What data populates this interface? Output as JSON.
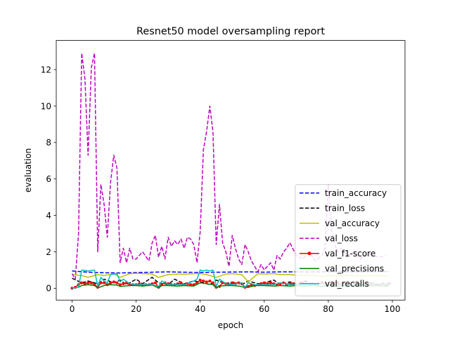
{
  "chart_data": {
    "type": "line",
    "title": "Resnet50 model oversampling report",
    "xlabel": "epoch",
    "ylabel": "evaluation",
    "xlim": [
      -4.95,
      103.95
    ],
    "ylim": [
      -0.65,
      13.6
    ],
    "xticks": [
      0,
      20,
      40,
      60,
      80,
      100
    ],
    "yticks": [
      0,
      2,
      4,
      6,
      8,
      10,
      12
    ],
    "grid": false,
    "legend_position": "lower-right",
    "series": [
      {
        "name": "train_accuracy",
        "color": "#0000ff",
        "dash": "dashed",
        "marker": false,
        "x": [
          0,
          5,
          10,
          15,
          20,
          25,
          30,
          35,
          40,
          45,
          50,
          55,
          60,
          65,
          70,
          75,
          80,
          85,
          90,
          95,
          99
        ],
        "y": [
          0.95,
          0.88,
          0.85,
          0.84,
          0.86,
          0.88,
          0.9,
          0.88,
          0.87,
          0.88,
          0.89,
          0.9,
          0.88,
          0.9,
          0.9,
          0.89,
          0.91,
          0.9,
          0.9,
          0.91,
          0.92
        ]
      },
      {
        "name": "train_loss",
        "color": "#000000",
        "dash": "dashed",
        "marker": false,
        "x": [
          0,
          3,
          5,
          8,
          10,
          13,
          15,
          17,
          20,
          22,
          25,
          27,
          30,
          32,
          35,
          38,
          40,
          43,
          45,
          48,
          50,
          53,
          55,
          58,
          60,
          63,
          65,
          68,
          70,
          73,
          75,
          78,
          80,
          83,
          85,
          88,
          90,
          93,
          95,
          99
        ],
        "y": [
          0.55,
          0.3,
          0.4,
          0.25,
          0.5,
          0.3,
          0.45,
          0.2,
          0.5,
          0.25,
          0.6,
          0.3,
          0.2,
          0.5,
          0.25,
          0.4,
          0.35,
          0.2,
          0.45,
          0.25,
          0.35,
          0.2,
          0.4,
          0.25,
          0.3,
          0.45,
          0.2,
          0.35,
          0.25,
          0.4,
          0.2,
          0.3,
          0.25,
          0.35,
          0.2,
          0.3,
          0.25,
          0.3,
          0.2,
          0.25
        ]
      },
      {
        "name": "val_accuracy",
        "color": "#bfbf00",
        "dash": "solid",
        "marker": false,
        "x": [
          0,
          3,
          5,
          8,
          10,
          13,
          15,
          18,
          20,
          23,
          25,
          27,
          30,
          33,
          35,
          38,
          40,
          42,
          45,
          48,
          50,
          53,
          55,
          58,
          60,
          63,
          65,
          68,
          70,
          73,
          75,
          78,
          80,
          83,
          85,
          88,
          90,
          93,
          95,
          99
        ],
        "y": [
          0.75,
          0.7,
          0.6,
          0.75,
          0.7,
          0.8,
          0.6,
          0.8,
          0.82,
          0.8,
          0.78,
          0.6,
          0.75,
          0.78,
          0.77,
          0.8,
          0.8,
          0.75,
          0.6,
          0.78,
          0.8,
          0.75,
          0.35,
          0.8,
          0.78,
          0.8,
          0.75,
          0.75,
          0.72,
          0.7,
          0.72,
          0.65,
          0.7,
          0.68,
          0.7,
          0.7,
          0.68,
          0.7,
          0.7,
          0.68
        ]
      },
      {
        "name": "val_loss",
        "color": "#bf00bf",
        "dash": "dashed",
        "marker": false,
        "x": [
          0,
          1,
          2,
          3,
          4,
          5,
          6,
          7,
          8,
          9,
          10,
          11,
          12,
          13,
          14,
          15,
          16,
          17,
          18,
          19,
          20,
          22,
          24,
          25,
          26,
          27,
          28,
          29,
          30,
          31,
          32,
          33,
          34,
          35,
          36,
          37,
          38,
          39,
          40,
          41,
          42,
          43,
          44,
          45,
          46,
          47,
          48,
          49,
          50,
          51,
          52,
          53,
          54,
          55,
          56,
          57,
          58,
          59,
          60,
          62,
          63,
          64,
          65,
          66,
          67,
          68,
          70,
          72,
          74,
          76,
          78,
          79,
          80,
          81,
          82,
          83,
          84,
          86,
          88,
          90,
          92,
          94,
          96,
          98
        ],
        "y": [
          0.8,
          0.5,
          3.0,
          12.9,
          11.5,
          7.3,
          12.1,
          12.9,
          2.0,
          5.7,
          4.6,
          2.8,
          5.8,
          7.3,
          6.6,
          1.4,
          2.2,
          1.4,
          2.2,
          1.6,
          1.6,
          2.0,
          1.5,
          2.5,
          2.9,
          1.7,
          2.3,
          1.6,
          2.8,
          2.3,
          2.6,
          2.4,
          2.7,
          2.2,
          2.8,
          2.7,
          2.4,
          1.4,
          3.1,
          7.6,
          8.6,
          10.0,
          8.6,
          2.4,
          4.6,
          2.5,
          2.0,
          1.2,
          2.9,
          2.2,
          1.6,
          1.3,
          2.4,
          2.0,
          1.5,
          1.2,
          0.9,
          1.3,
          1.0,
          1.4,
          1.0,
          1.8,
          1.6,
          2.0,
          2.2,
          2.5,
          1.8,
          1.6,
          2.0,
          1.5,
          1.8,
          2.2,
          5.7,
          3.2,
          2.4,
          2.0,
          2.2,
          1.8,
          2.0,
          1.6,
          1.9,
          1.8,
          1.7,
          1.8
        ]
      },
      {
        "name": "val_f1-score",
        "color": "#ff0000",
        "dash": "solid",
        "marker": true,
        "x": [
          0,
          1,
          2,
          3,
          4,
          5,
          6,
          7,
          8,
          9,
          10,
          11,
          12,
          13,
          14,
          15,
          16,
          17,
          18,
          19,
          20,
          21,
          22,
          23,
          24,
          25,
          26,
          27,
          28,
          29,
          30,
          31,
          32,
          33,
          34,
          35,
          36,
          37,
          38,
          39,
          40,
          41,
          42,
          43,
          44,
          45,
          46,
          47,
          48,
          49,
          50,
          51,
          52,
          53,
          54,
          55,
          56,
          57,
          58,
          59,
          60,
          61,
          62,
          63,
          64,
          65,
          66,
          67,
          68,
          69,
          70,
          71,
          72,
          73,
          74,
          75,
          76,
          77,
          78,
          79,
          80,
          81,
          82,
          83,
          84,
          85,
          86,
          87,
          88,
          89,
          90,
          91,
          92,
          93,
          94,
          95,
          96,
          97,
          98,
          99
        ],
        "y": [
          0.0,
          0.05,
          0.2,
          0.3,
          0.25,
          0.3,
          0.3,
          0.2,
          0.05,
          0.3,
          0.3,
          0.2,
          0.3,
          0.35,
          0.3,
          0.2,
          0.25,
          0.3,
          0.2,
          0.2,
          0.2,
          0.25,
          0.2,
          0.2,
          0.2,
          0.25,
          0.3,
          0.05,
          0.2,
          0.3,
          0.25,
          0.2,
          0.2,
          0.25,
          0.3,
          0.2,
          0.25,
          0.2,
          0.2,
          0.3,
          0.45,
          0.4,
          0.35,
          0.4,
          0.3,
          0.05,
          0.1,
          0.3,
          0.25,
          0.2,
          0.3,
          0.25,
          0.3,
          0.25,
          0.05,
          0.1,
          0.2,
          0.15,
          0.2,
          0.25,
          0.3,
          0.25,
          0.3,
          0.25,
          0.2,
          0.25,
          0.3,
          0.2,
          0.25,
          0.25,
          0.2,
          0.25,
          0.3,
          0.25,
          0.2,
          0.25,
          0.2,
          0.25,
          0.3,
          0.25,
          0.2,
          0.25,
          0.3,
          0.25,
          0.2,
          0.25,
          0.2,
          0.25,
          0.2,
          0.25,
          0.2,
          0.2,
          0.25,
          0.2,
          0.25,
          0.2,
          0.2,
          0.25,
          0.2,
          0.25
        ]
      },
      {
        "name": "val_precisions",
        "color": "#008000",
        "dash": "solid",
        "marker": false,
        "x": [
          0,
          2,
          3,
          5,
          7,
          8,
          10,
          12,
          14,
          15,
          18,
          20,
          22,
          25,
          27,
          28,
          30,
          33,
          35,
          38,
          40,
          42,
          44,
          45,
          46,
          48,
          50,
          52,
          54,
          55,
          57,
          60,
          63,
          65,
          68,
          70,
          73,
          75,
          78,
          80,
          83,
          85,
          88,
          90,
          93,
          95,
          99
        ],
        "y": [
          0.0,
          0.05,
          0.15,
          0.2,
          0.15,
          0.02,
          0.15,
          0.2,
          0.18,
          0.1,
          0.15,
          0.15,
          0.12,
          0.18,
          0.02,
          0.15,
          0.15,
          0.12,
          0.15,
          0.12,
          0.3,
          0.25,
          0.2,
          0.02,
          0.12,
          0.15,
          0.15,
          0.12,
          0.05,
          0.05,
          0.15,
          0.15,
          0.12,
          0.15,
          0.12,
          0.15,
          0.12,
          0.15,
          0.1,
          0.15,
          0.12,
          0.15,
          0.12,
          0.15,
          0.12,
          0.15,
          0.12
        ]
      },
      {
        "name": "val_recalls",
        "color": "#00bfbf",
        "dash": "solid",
        "marker": false,
        "x": [
          0,
          2,
          3,
          5,
          7,
          8,
          9,
          10,
          11,
          12,
          14,
          15,
          16,
          18,
          20,
          25,
          27,
          28,
          30,
          35,
          38,
          39,
          40,
          41,
          42,
          43,
          44,
          45,
          46,
          48,
          50,
          53,
          54,
          55,
          57,
          60,
          63,
          65,
          68,
          70,
          75,
          78,
          80,
          85,
          90,
          95,
          99
        ],
        "y": [
          0.0,
          0.05,
          1.0,
          0.95,
          1.0,
          0.1,
          0.6,
          0.4,
          0.3,
          0.75,
          0.8,
          0.35,
          0.5,
          0.25,
          0.2,
          0.2,
          0.1,
          0.4,
          0.2,
          0.2,
          0.4,
          0.5,
          1.0,
          0.95,
          1.0,
          0.95,
          1.0,
          0.1,
          0.5,
          0.25,
          0.2,
          0.3,
          0.05,
          0.3,
          0.2,
          0.2,
          0.2,
          0.3,
          0.2,
          0.2,
          0.2,
          0.25,
          0.2,
          0.2,
          0.2,
          0.25,
          0.2
        ]
      }
    ]
  }
}
